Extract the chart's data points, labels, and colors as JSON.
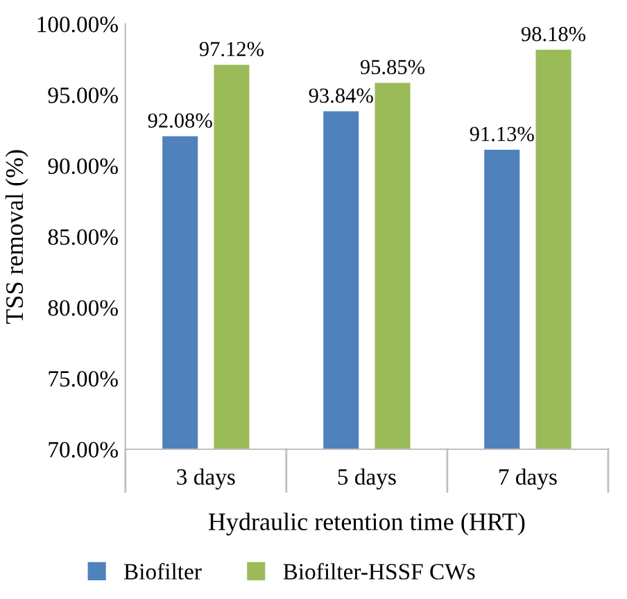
{
  "chart_data": {
    "type": "bar",
    "xlabel": "Hydraulic retention time (HRT)",
    "ylabel": "TSS removal (%)",
    "categories": [
      "3 days",
      "5 days",
      "7 days"
    ],
    "series": [
      {
        "name": "Biofilter",
        "color": "#4f81bd",
        "values": [
          92.08,
          93.84,
          91.13
        ],
        "value_labels": [
          "92.08%",
          "93.84%",
          "91.13%"
        ]
      },
      {
        "name": "Biofilter-HSSF CWs",
        "color": "#9bbb59",
        "values": [
          97.12,
          95.85,
          98.18
        ],
        "value_labels": [
          "97.12%",
          "95.85%",
          "98.18%"
        ]
      }
    ],
    "ylim": [
      70,
      100
    ],
    "yticks": [
      {
        "value": 70,
        "label": "70.00%"
      },
      {
        "value": 75,
        "label": "75.00%"
      },
      {
        "value": 80,
        "label": "80.00%"
      },
      {
        "value": 85,
        "label": "85.00%"
      },
      {
        "value": 90,
        "label": "90.00%"
      },
      {
        "value": 95,
        "label": "95.00%"
      },
      {
        "value": 100,
        "label": "100.00%"
      }
    ],
    "grid": false,
    "legend": "bottom"
  }
}
